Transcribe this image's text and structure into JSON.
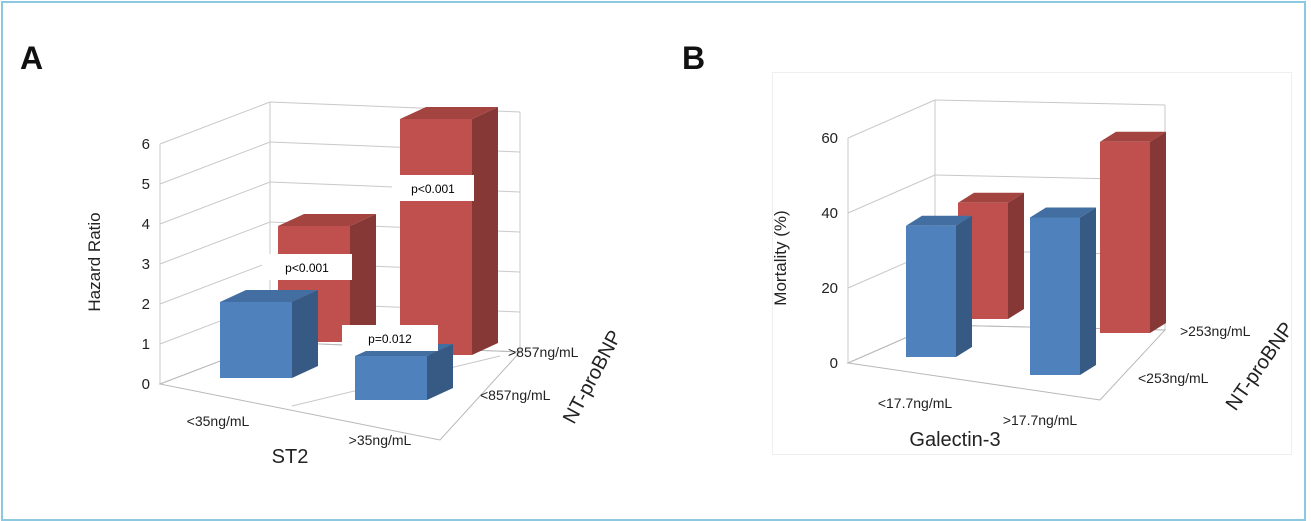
{
  "panels": {
    "a_letter": "A",
    "b_letter": "B"
  },
  "chart_data": [
    {
      "type": "bar",
      "subtype": "3d-grouped",
      "title": "",
      "ylabel": "Hazard Ratio",
      "xlabel": "ST2",
      "zlabel": "NT-proBNP",
      "ylim": [
        0,
        6
      ],
      "yticks": [
        0,
        1,
        2,
        3,
        4,
        5,
        6
      ],
      "categories": [
        "<35ng/mL",
        ">35ng/mL"
      ],
      "series": [
        {
          "name": "<857ng/mL",
          "color": "#4f81bd",
          "values": [
            1.9,
            1.1
          ]
        },
        {
          "name": ">857ng/mL",
          "color": "#c0504d",
          "values": [
            2.9,
            5.9
          ]
        }
      ],
      "annotations": [
        {
          "text": "p<0.001",
          "target": "<35ng/mL / >857ng/mL"
        },
        {
          "text": "p<0.001",
          "target": ">35ng/mL / >857ng/mL"
        },
        {
          "text": "p=0.012",
          "target": ">35ng/mL / <857ng/mL"
        }
      ],
      "grid": true
    },
    {
      "type": "bar",
      "subtype": "3d-grouped",
      "title": "",
      "ylabel": "Mortality (%)",
      "xlabel": "Galectin-3",
      "zlabel": "NT-proBNP",
      "ylim": [
        0,
        60
      ],
      "yticks": [
        0,
        20,
        40,
        60
      ],
      "categories": [
        "<17.7ng/mL",
        ">17.7ng/mL"
      ],
      "series": [
        {
          "name": "<253ng/mL",
          "color": "#4f81bd",
          "values": [
            35,
            42
          ]
        },
        {
          "name": ">253ng/mL",
          "color": "#c0504d",
          "values": [
            31,
            51
          ]
        }
      ],
      "grid": true
    }
  ]
}
